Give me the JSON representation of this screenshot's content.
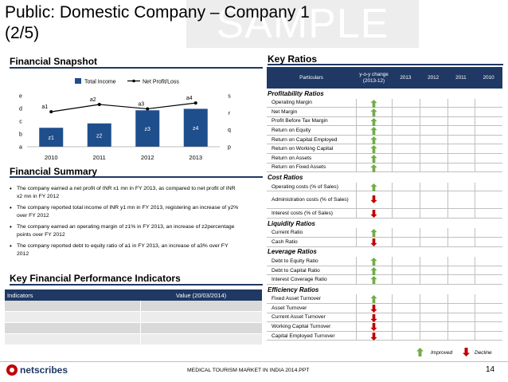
{
  "header": {
    "title_line1": "Public: Domestic Company – Company 1",
    "title_line2": "(2/5)",
    "watermark": "SAMPLE"
  },
  "snapshot": {
    "heading": "Financial Snapshot"
  },
  "chart_data": {
    "type": "bar",
    "categories": [
      "2010",
      "2011",
      "2012",
      "2013"
    ],
    "series": [
      {
        "name": "Total Income",
        "type": "bar",
        "values": [
          1.3,
          1.6,
          2.5,
          2.6
        ],
        "labels": [
          "z1",
          "z2",
          "z3",
          "z4"
        ],
        "color": "#1f4e8c"
      },
      {
        "name": "Net Profit/Loss",
        "type": "line",
        "values": [
          2.4,
          2.9,
          2.6,
          3.0
        ],
        "labels": [
          "a1",
          "a2",
          "a3",
          "a4"
        ],
        "color": "#000000"
      }
    ],
    "left_axis_ticks": [
      "a",
      "b",
      "c",
      "d",
      "e"
    ],
    "right_axis_ticks": [
      "p",
      "q",
      "r",
      "s"
    ],
    "legend_position": "top"
  },
  "summary": {
    "heading": "Financial Summary",
    "bullets": [
      "The company earned a net profit of INR x1 mn in FY 2013, as compared to net profit of INR x2 mn in FY 2012",
      "The company reported total income of INR y1 mn in FY 2013, registering an increase of y2% over FY 2012",
      "The company earned an operating margin of z1% in FY 2013, an increase of z2percentage points over FY 2012",
      "The company reported debt to equity ratio of a1 in FY 2013, an increase of a3% over FY 2012"
    ]
  },
  "kpi": {
    "heading": "Key Financial Performance Indicators",
    "col_indicators": "Indicators",
    "col_value": "Value (20/03/2014)",
    "rows": 4
  },
  "ratios": {
    "heading": "Key Ratios",
    "col_particulars": "Particulars",
    "col_yoy": "y-o-y change (2013-12)",
    "years": [
      "2013",
      "2012",
      "2011",
      "2010"
    ],
    "groups": [
      {
        "name": "Profitability Ratios",
        "items": [
          {
            "label": "Operating Margin",
            "trend": "up"
          },
          {
            "label": "Net Margin",
            "trend": "up"
          },
          {
            "label": "Profit Before Tax Margin",
            "trend": "up"
          },
          {
            "label": "Return on Equity",
            "trend": "up"
          },
          {
            "label": "Return on Capital Employed",
            "trend": "up"
          },
          {
            "label": "Return on Working Capital",
            "trend": "up"
          },
          {
            "label": "Return on Assets",
            "trend": "up"
          },
          {
            "label": "Return on Fixed Assets",
            "trend": "up"
          }
        ]
      },
      {
        "name": "Cost Ratios",
        "items": [
          {
            "label": "Operating costs (% of Sales)",
            "trend": "up"
          },
          {
            "label": "Administration costs (% of Sales)",
            "trend": "down"
          },
          {
            "label": "Interest costs (% of Sales)",
            "trend": "down"
          }
        ]
      },
      {
        "name": "Liquidity Ratios",
        "items": [
          {
            "label": "Current Ratio",
            "trend": "up"
          },
          {
            "label": "Cash Ratio",
            "trend": "down"
          }
        ]
      },
      {
        "name": "Leverage Ratios",
        "items": [
          {
            "label": "Debt to Equity Ratio",
            "trend": "up"
          },
          {
            "label": "Debt to Capital Ratio",
            "trend": "up"
          },
          {
            "label": "Interest Coverage Ratio",
            "trend": "up"
          }
        ]
      },
      {
        "name": "Efficiency Ratios",
        "items": [
          {
            "label": "Fixed Asset Turnover",
            "trend": "up"
          },
          {
            "label": "Asset Turnover",
            "trend": "down"
          },
          {
            "label": "Current Asset Turnover",
            "trend": "down"
          },
          {
            "label": "Working Capital Turnover",
            "trend": "down"
          },
          {
            "label": "Capital Employed Turnover",
            "trend": "down"
          }
        ]
      }
    ],
    "legend_improved": "Improved",
    "legend_decline": "Decline"
  },
  "footer": {
    "logo_text": "netscribes",
    "text": "MEDICAL TOURISM MARKET IN INDIA 2014.PPT",
    "page": "14"
  },
  "colors": {
    "navy": "#1f3864",
    "bar": "#1f4e8c",
    "improved": "#70ad47",
    "decline": "#c00000"
  }
}
